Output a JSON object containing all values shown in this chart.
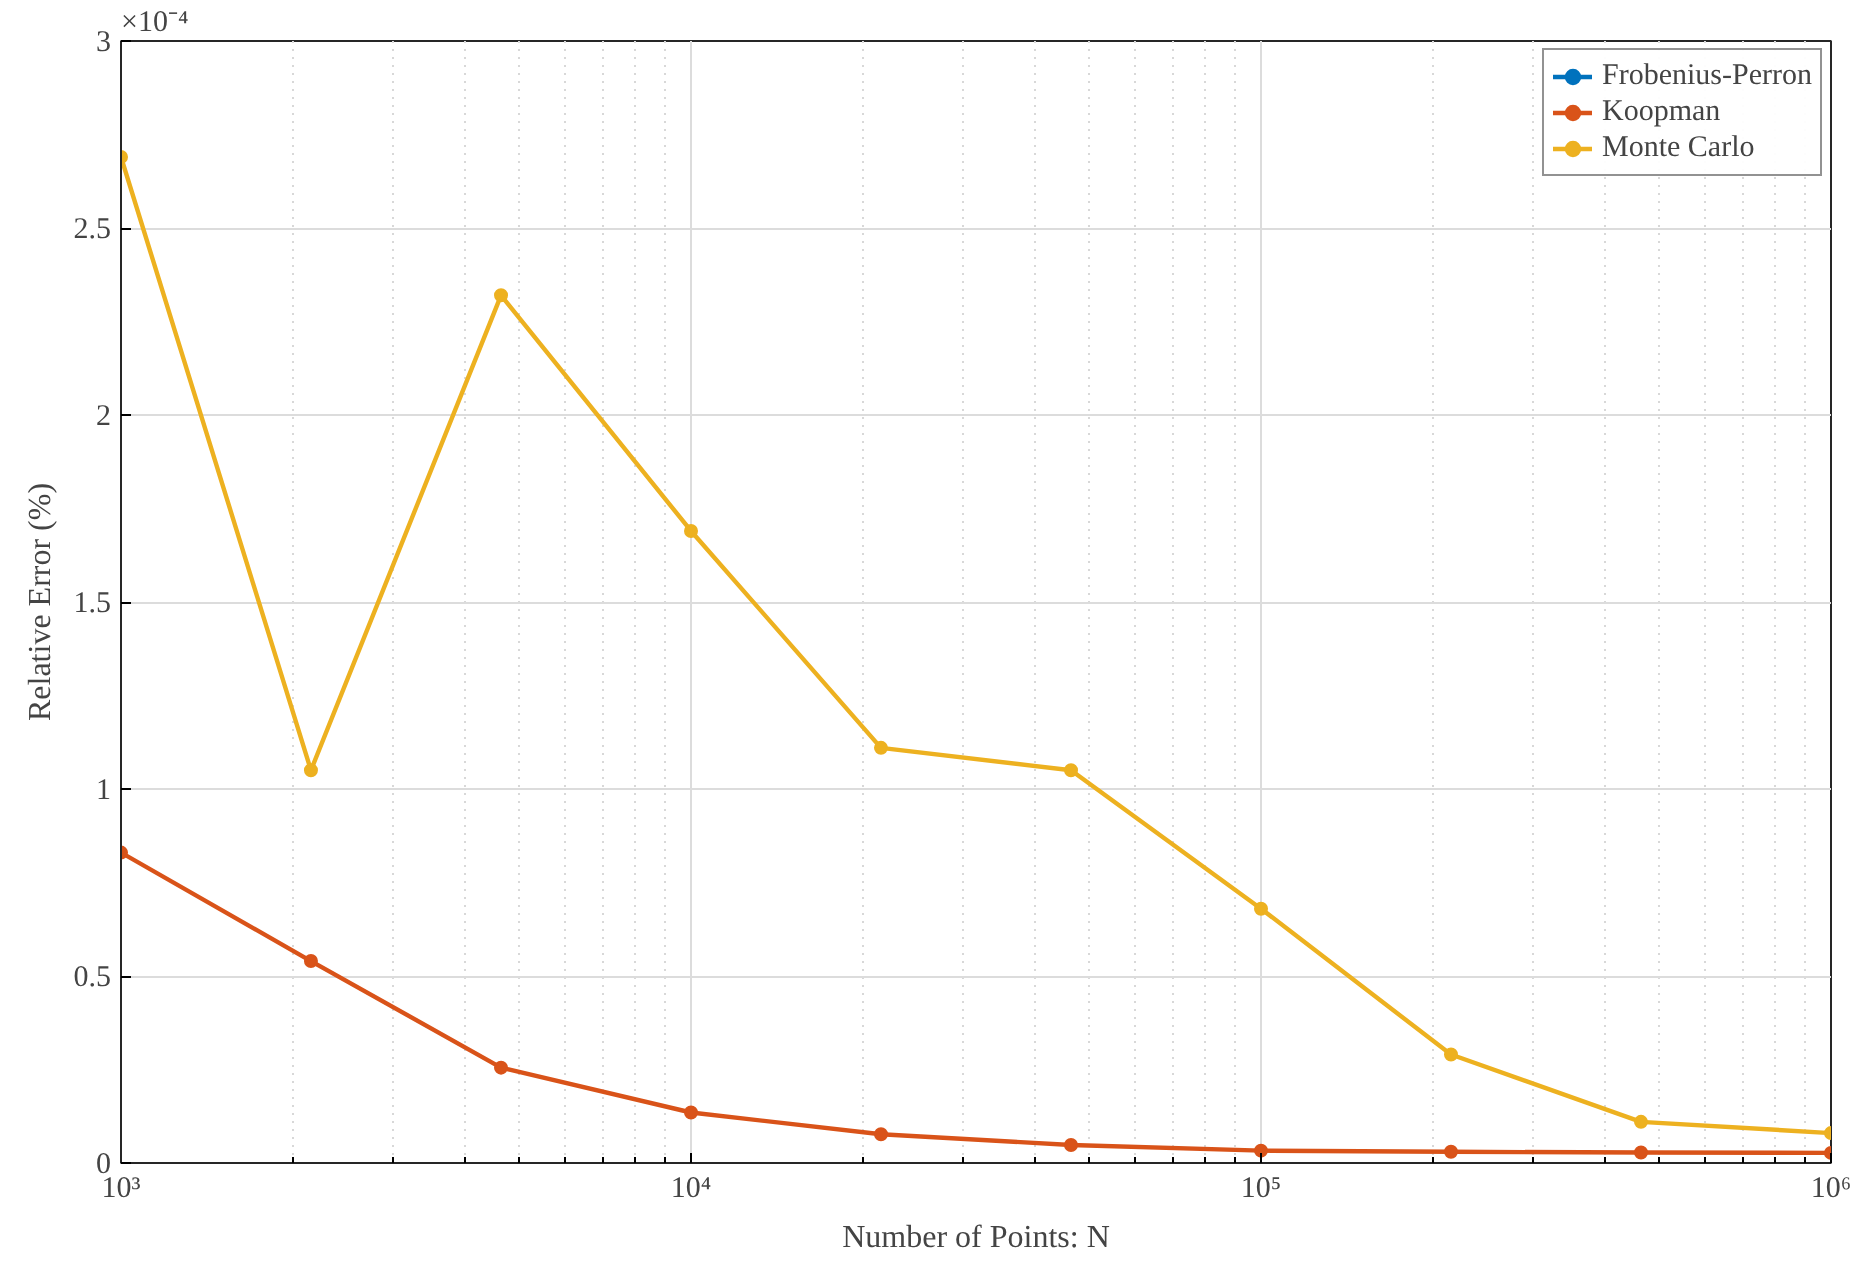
{
  "chart_data": {
    "type": "line",
    "xlabel": "Number of Points: N",
    "ylabel": "Relative Error (%)",
    "log": "x",
    "x": [
      1000,
      2154,
      4642,
      10000,
      21544,
      46416,
      100000,
      215443,
      464159,
      1000000
    ],
    "xlim": [
      1000,
      1000000
    ],
    "xticks": [
      {
        "value": 1000,
        "label": "10³"
      },
      {
        "value": 10000,
        "label": "10⁴"
      },
      {
        "value": 100000,
        "label": "10⁵"
      },
      {
        "value": 1000000,
        "label": "10⁶"
      }
    ],
    "ylim": [
      0,
      3
    ],
    "yticks": [
      0,
      0.5,
      1,
      1.5,
      2,
      2.5,
      3
    ],
    "annotations": [
      "×10⁻⁴"
    ],
    "grid": true,
    "legend": "top right",
    "marker": "circle",
    "line_style": "solid",
    "series": [
      {
        "name": "Frobenius-Perron",
        "color": "#0072bd",
        "values": [
          null,
          null,
          null,
          null,
          null,
          null,
          null,
          null,
          null,
          null
        ]
      },
      {
        "name": "Koopman",
        "color": "#d95319",
        "values": [
          0.83,
          0.54,
          0.255,
          0.135,
          0.077,
          0.048,
          0.033,
          0.03,
          0.028,
          0.027
        ]
      },
      {
        "name": "Monte Carlo",
        "color": "#edb120",
        "values": [
          2.69,
          1.05,
          2.32,
          1.69,
          1.11,
          1.05,
          0.68,
          0.29,
          0.11,
          0.08
        ]
      }
    ]
  }
}
